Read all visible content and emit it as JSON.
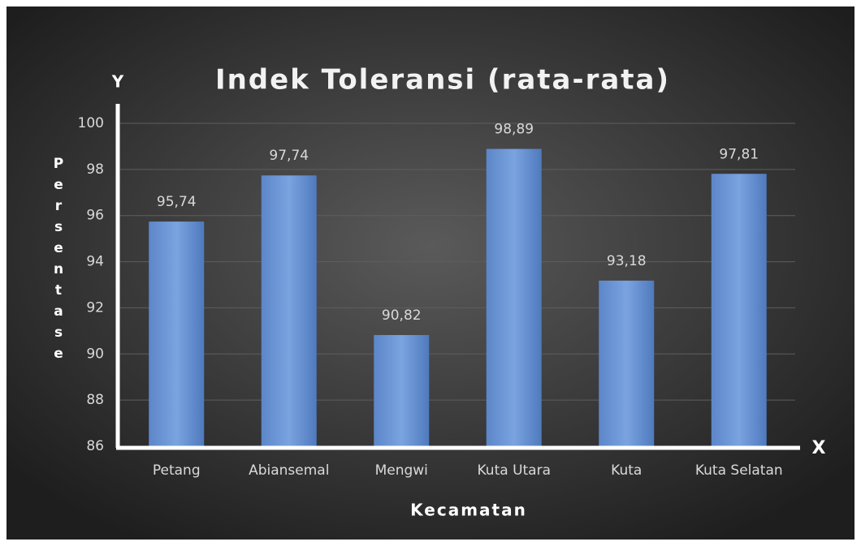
{
  "chart_data": {
    "type": "bar",
    "title": "Indek Toleransi (rata-rata)",
    "y_axis_letter": "Y",
    "x_axis_letter": "X",
    "y_label": "Persentase",
    "x_label": "Kecamatan",
    "categories": [
      "Petang",
      "Abiansemal",
      "Mengwi",
      "Kuta Utara",
      "Kuta",
      "Kuta Selatan"
    ],
    "values": [
      95.74,
      97.74,
      90.82,
      98.89,
      93.18,
      97.81
    ],
    "value_labels": [
      "95,74",
      "97,74",
      "90,82",
      "98,89",
      "93,18",
      "97,81"
    ],
    "color": "#5b87c9",
    "ylim": [
      86,
      100
    ],
    "yticks": [
      86,
      88,
      90,
      92,
      94,
      96,
      98,
      100
    ],
    "grid": true
  }
}
